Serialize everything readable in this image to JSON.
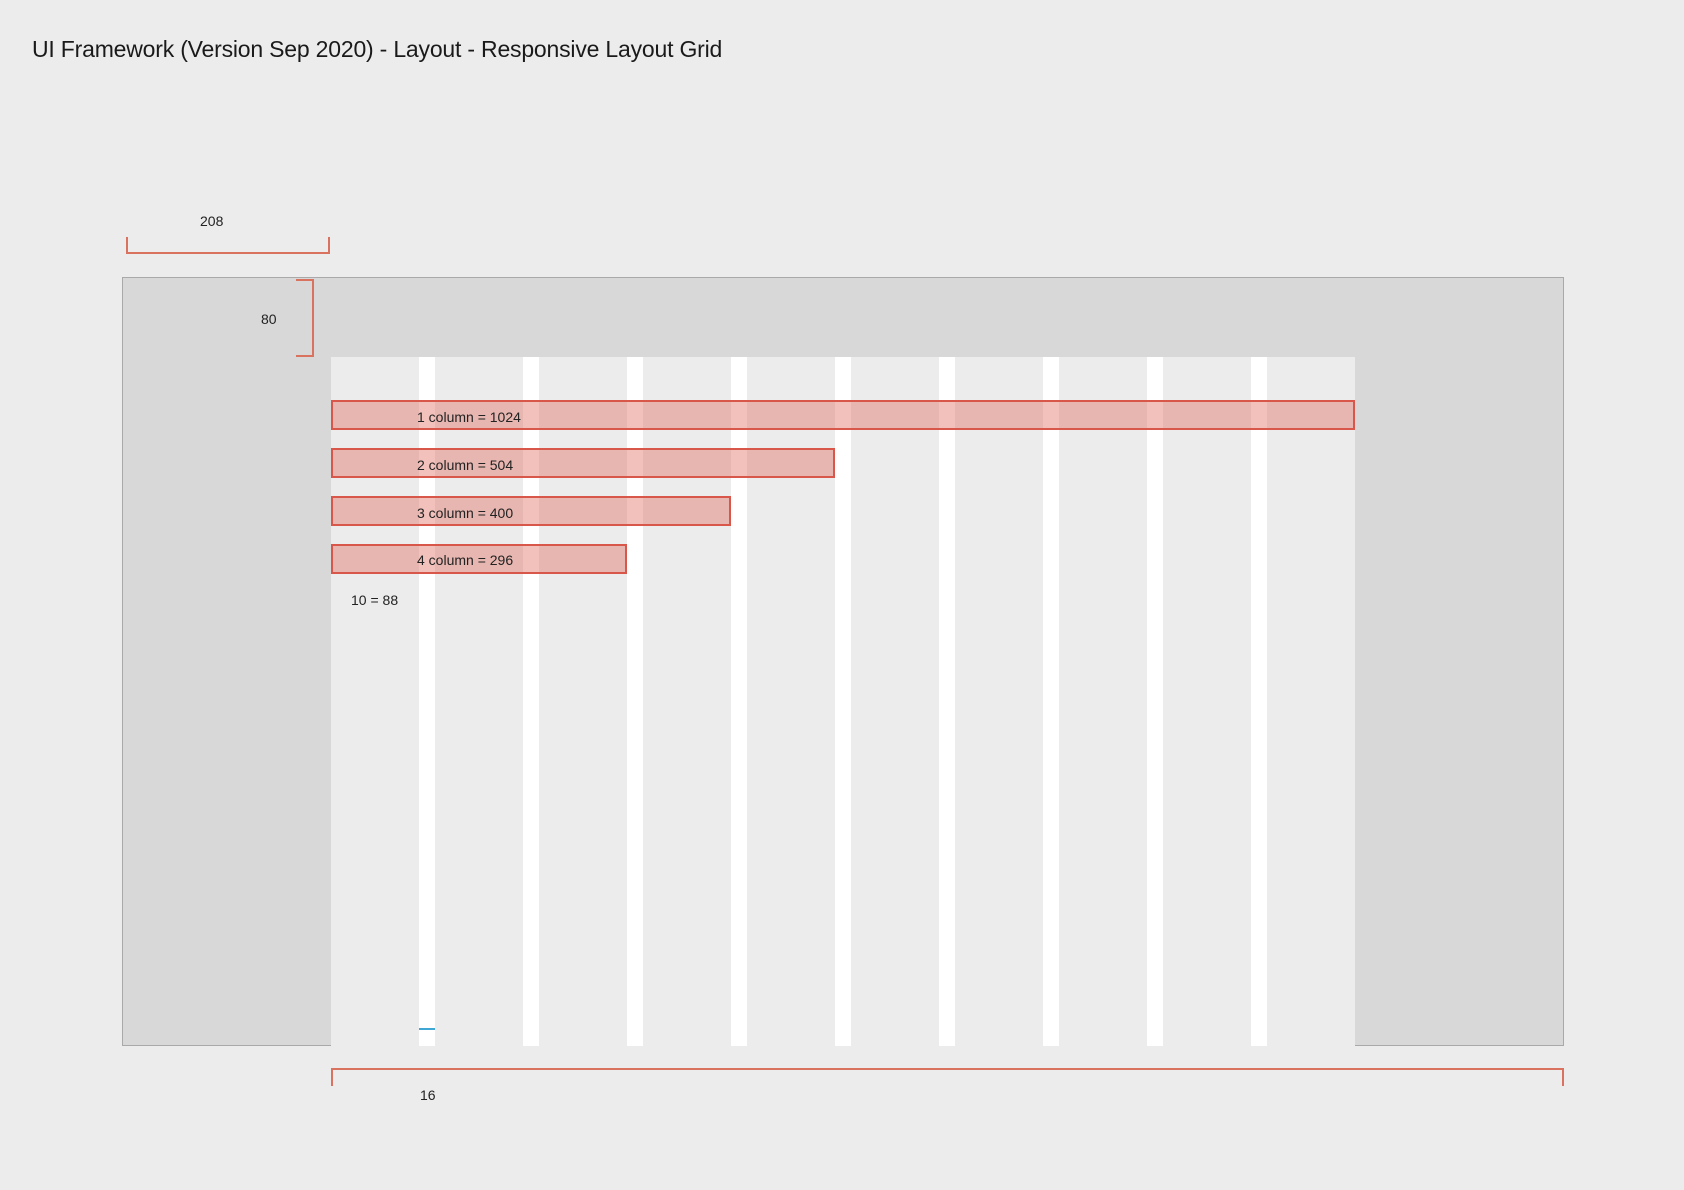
{
  "header": {
    "title": "UI Framework (Version Sep 2020) - Layout - Responsive Layout Grid"
  },
  "dimensions": {
    "side_margin": "208",
    "top_margin": "80",
    "gutter": "16",
    "column_width": "10 = 88"
  },
  "column_spans": [
    {
      "label": "1 column = 1024",
      "columns": 10
    },
    {
      "label": "2 column = 504",
      "columns": 5
    },
    {
      "label": "3 column = 400",
      "columns": 4
    },
    {
      "label": "4 column = 296",
      "columns": 3
    }
  ],
  "colors": {
    "background": "#ececec",
    "frame": "#d8d8d8",
    "gutter": "#ffffff",
    "span_fill": "#e8b4ae",
    "span_border": "#d8574a",
    "bracket": "#d9735f",
    "gutter_marker": "#3fa7d6"
  }
}
